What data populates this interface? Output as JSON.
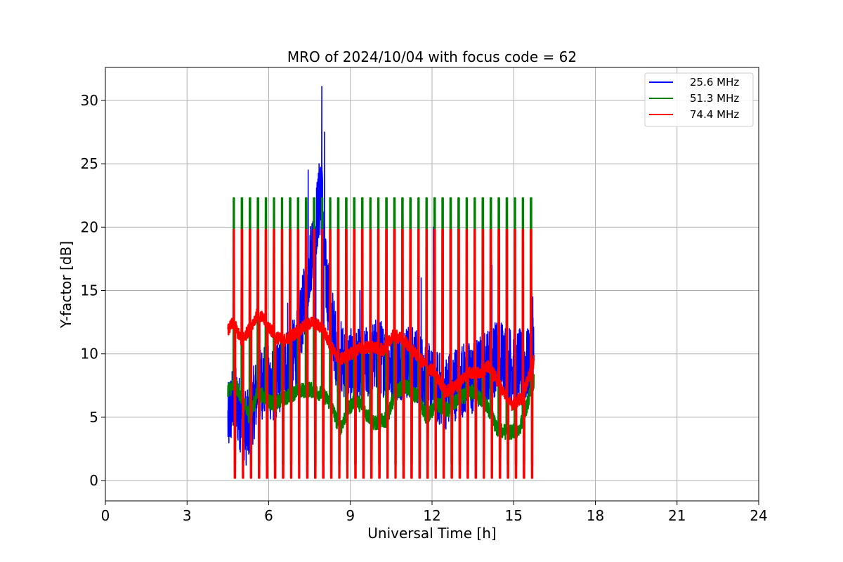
{
  "chart_data": {
    "type": "line",
    "title": "MRO of 2024/10/04 with focus code = 62",
    "xlabel": "Universal Time [h]",
    "ylabel": "Y-factor [dB]",
    "xlim": [
      0,
      24
    ],
    "ylim": [
      -1.6,
      32.6
    ],
    "xticks": [
      0,
      3,
      6,
      9,
      12,
      15,
      18,
      21,
      24
    ],
    "yticks": [
      0,
      5,
      10,
      15,
      20,
      25,
      30
    ],
    "grid": true,
    "legend_position": "top-right",
    "series": [
      {
        "name": "25.6 MHz",
        "color": "#0000ff",
        "baseline": [
          [
            4.5,
            4.6
          ],
          [
            4.7,
            6.5
          ],
          [
            5.0,
            5.0
          ],
          [
            5.2,
            4.0
          ],
          [
            5.5,
            6.5
          ],
          [
            5.8,
            8.0
          ],
          [
            6.2,
            7.5
          ],
          [
            6.6,
            9.0
          ],
          [
            7.0,
            10.0
          ],
          [
            7.3,
            14.0
          ],
          [
            7.5,
            17.0
          ],
          [
            7.7,
            20.0
          ],
          [
            7.95,
            23.0
          ],
          [
            8.1,
            16.0
          ],
          [
            8.5,
            10.0
          ],
          [
            9.0,
            9.0
          ],
          [
            9.5,
            9.0
          ],
          [
            10.0,
            10.0
          ],
          [
            10.5,
            9.0
          ],
          [
            11.0,
            9.5
          ],
          [
            11.5,
            9.0
          ],
          [
            12.0,
            7.5
          ],
          [
            12.5,
            7.0
          ],
          [
            13.0,
            8.0
          ],
          [
            13.5,
            8.0
          ],
          [
            14.0,
            9.0
          ],
          [
            14.5,
            10.0
          ],
          [
            15.0,
            9.0
          ],
          [
            15.5,
            9.0
          ],
          [
            15.75,
            10.0
          ]
        ],
        "spikes": [
          [
            7.45,
            24.5
          ],
          [
            7.85,
            25.0
          ],
          [
            7.95,
            31.1
          ],
          [
            8.05,
            27.5
          ],
          [
            6.7,
            14.0
          ],
          [
            9.35,
            15.0
          ],
          [
            10.3,
            16.5
          ],
          [
            11.6,
            16.0
          ],
          [
            12.05,
            20.0
          ],
          [
            14.2,
            17.0
          ],
          [
            15.7,
            14.5
          ]
        ],
        "cal_low": 0.3
      },
      {
        "name": "51.3 MHz",
        "color": "#008000",
        "baseline": [
          [
            4.5,
            7.2
          ],
          [
            4.8,
            7.5
          ],
          [
            5.0,
            6.5
          ],
          [
            5.3,
            5.0
          ],
          [
            5.6,
            7.0
          ],
          [
            5.9,
            6.5
          ],
          [
            6.2,
            6.0
          ],
          [
            6.6,
            6.5
          ],
          [
            7.0,
            7.0
          ],
          [
            7.5,
            7.2
          ],
          [
            8.0,
            6.8
          ],
          [
            8.3,
            6.0
          ],
          [
            8.6,
            4.0
          ],
          [
            8.9,
            5.5
          ],
          [
            9.2,
            6.5
          ],
          [
            9.5,
            5.5
          ],
          [
            9.9,
            4.5
          ],
          [
            10.3,
            4.8
          ],
          [
            10.7,
            7.0
          ],
          [
            11.0,
            7.5
          ],
          [
            11.5,
            6.5
          ],
          [
            11.8,
            5.0
          ],
          [
            12.2,
            6.0
          ],
          [
            12.6,
            5.5
          ],
          [
            13.0,
            6.5
          ],
          [
            13.5,
            7.0
          ],
          [
            14.0,
            6.0
          ],
          [
            14.4,
            4.0
          ],
          [
            14.8,
            3.8
          ],
          [
            15.2,
            4.0
          ],
          [
            15.5,
            6.0
          ],
          [
            15.75,
            8.0
          ]
        ],
        "cal_high": 22.3,
        "cal_low": 1.3
      },
      {
        "name": "74.4 MHz",
        "color": "#ff0000",
        "baseline": [
          [
            4.5,
            11.8
          ],
          [
            4.7,
            12.5
          ],
          [
            5.0,
            11.0
          ],
          [
            5.3,
            12.0
          ],
          [
            5.6,
            13.2
          ],
          [
            5.9,
            12.5
          ],
          [
            6.2,
            11.5
          ],
          [
            6.5,
            11.0
          ],
          [
            6.9,
            11.5
          ],
          [
            7.2,
            12.0
          ],
          [
            7.6,
            12.5
          ],
          [
            8.0,
            12.0
          ],
          [
            8.3,
            10.5
          ],
          [
            8.6,
            9.5
          ],
          [
            9.0,
            10.0
          ],
          [
            9.4,
            10.5
          ],
          [
            9.8,
            10.5
          ],
          [
            10.2,
            10.3
          ],
          [
            10.6,
            11.5
          ],
          [
            11.0,
            11.0
          ],
          [
            11.4,
            10.0
          ],
          [
            11.8,
            9.0
          ],
          [
            12.1,
            8.5
          ],
          [
            12.5,
            7.0
          ],
          [
            12.9,
            7.5
          ],
          [
            13.3,
            8.5
          ],
          [
            13.7,
            8.5
          ],
          [
            14.1,
            9.0
          ],
          [
            14.5,
            7.5
          ],
          [
            14.9,
            6.0
          ],
          [
            15.3,
            6.5
          ],
          [
            15.75,
            9.5
          ]
        ],
        "cal_high": 19.8,
        "cal_low": 0.2
      }
    ],
    "calibration": {
      "x_start": 4.7,
      "x_end": 15.75,
      "period": 0.295,
      "width": 0.08
    }
  }
}
